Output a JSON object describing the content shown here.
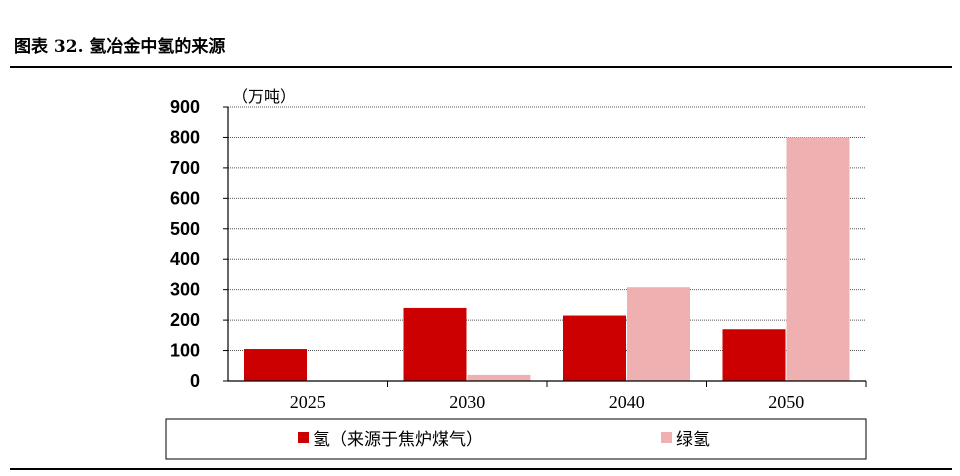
{
  "figure": {
    "title": "图表 32. 氢冶金中氢的来源"
  },
  "chart_data": {
    "type": "bar",
    "title": "",
    "unit_label": "（万吨）",
    "xlabel": "",
    "ylabel": "",
    "categories": [
      "2025",
      "2030",
      "2040",
      "2050"
    ],
    "series": [
      {
        "name": "氢（来源于焦炉煤气）",
        "color": "#cc0000",
        "values": [
          105,
          240,
          215,
          170
        ]
      },
      {
        "name": "绿氢",
        "color": "#eeb0b0",
        "values": [
          0,
          20,
          308,
          800
        ]
      }
    ],
    "ylim": [
      0,
      900
    ],
    "yticks": [
      0,
      100,
      200,
      300,
      400,
      500,
      600,
      700,
      800,
      900
    ],
    "grid": true,
    "legend": "bottom"
  }
}
